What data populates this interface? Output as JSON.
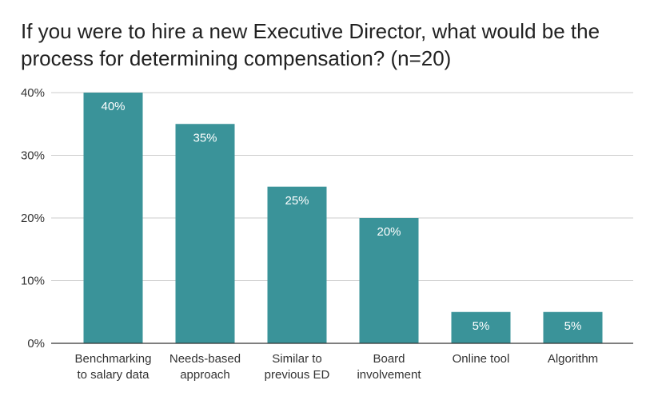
{
  "chart_data": {
    "type": "bar",
    "title_lines": [
      "If you were to hire a new Executive Director, what would be the",
      "process for determining compensation? (n=20)"
    ],
    "categories": [
      [
        "Benchmarking",
        "to salary data"
      ],
      [
        "Needs-based",
        "approach"
      ],
      [
        "Similar to",
        "previous ED"
      ],
      [
        "Board",
        "involvement"
      ],
      [
        "Online tool"
      ],
      [
        "Algorithm"
      ]
    ],
    "values": [
      40,
      35,
      25,
      20,
      5,
      5
    ],
    "data_labels": [
      "40%",
      "35%",
      "25%",
      "20%",
      "5%",
      "5%"
    ],
    "yticks": [
      0,
      10,
      20,
      30,
      40
    ],
    "ytick_labels": [
      "0%",
      "10%",
      "20%",
      "30%",
      "40%"
    ],
    "ylim": [
      0,
      40
    ],
    "grid": true,
    "bar_color": "#3a9399",
    "grid_color": "#cccccc",
    "axis_color": "#333333"
  }
}
